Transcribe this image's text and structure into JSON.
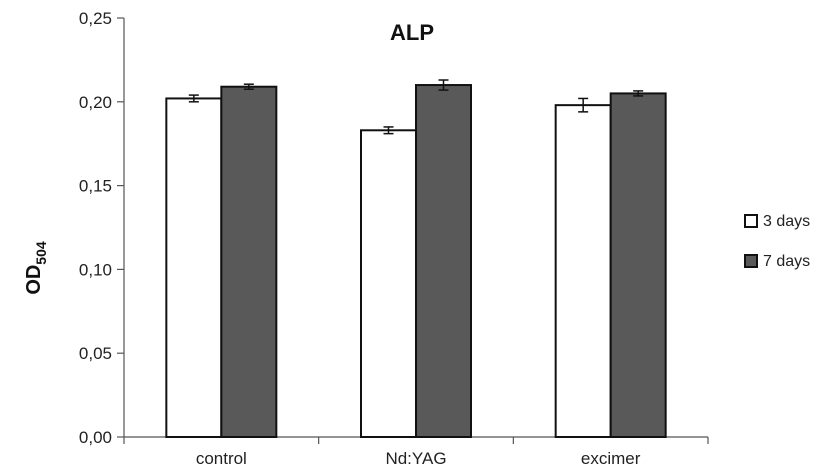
{
  "chart_data": {
    "type": "bar",
    "title": "ALP",
    "ylabel": "OD",
    "ylabel_sub": "504",
    "xlabel": "",
    "categories": [
      "control",
      "Nd:YAG",
      "excimer"
    ],
    "series": [
      {
        "name": "3 days",
        "color": "#ffffff",
        "values": [
          0.202,
          0.183,
          0.198
        ],
        "errors": [
          0.002,
          0.002,
          0.004
        ]
      },
      {
        "name": "7 days",
        "color": "#595959",
        "values": [
          0.209,
          0.21,
          0.205
        ],
        "errors": [
          0.0015,
          0.003,
          0.0015
        ]
      }
    ],
    "ylim": [
      0,
      0.25
    ],
    "yticks": [
      "0,00",
      "0,05",
      "0,10",
      "0,15",
      "0,20",
      "0,25"
    ],
    "ytick_values": [
      0,
      0.05,
      0.1,
      0.15,
      0.2,
      0.25
    ],
    "grid": false,
    "legend_position": "right"
  }
}
